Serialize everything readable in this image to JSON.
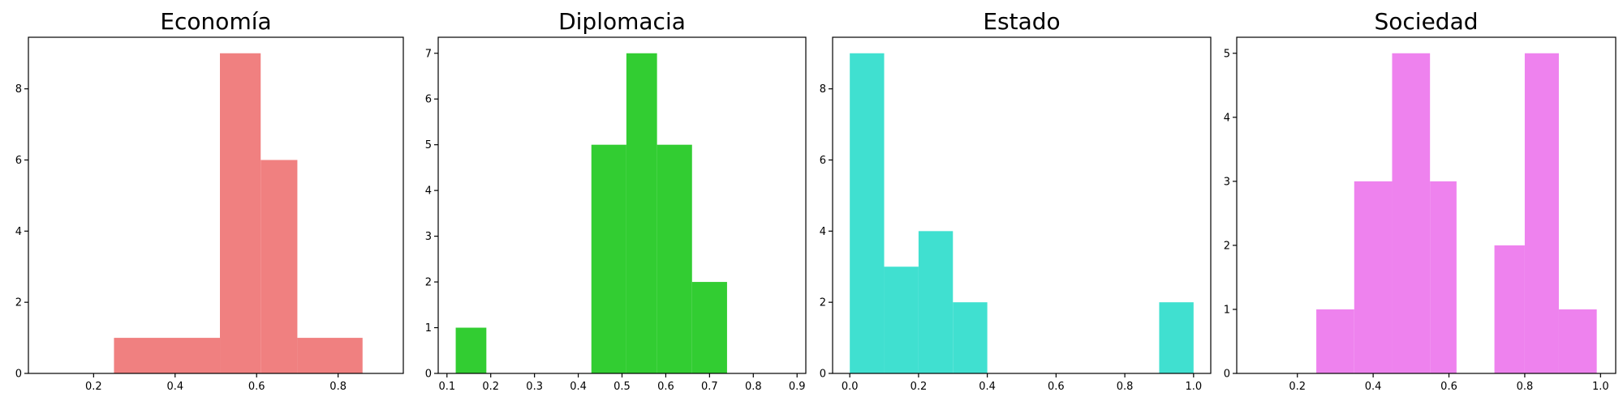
{
  "chart_data": [
    {
      "type": "bar",
      "title": "Economía",
      "color": "#F08080",
      "bins": [
        [
          0.25,
          0.51,
          1
        ],
        [
          0.51,
          0.61,
          9
        ],
        [
          0.61,
          0.7,
          6
        ],
        [
          0.7,
          0.86,
          1
        ]
      ],
      "xlim": [
        0.04,
        0.96
      ],
      "ylim": [
        0,
        9.45
      ],
      "xticks": [
        0.2,
        0.4,
        0.6,
        0.8
      ],
      "xtick_labels": [
        "0.2",
        "0.4",
        "0.6",
        "0.8"
      ],
      "yticks": [
        0,
        2,
        4,
        6,
        8
      ],
      "ytick_labels": [
        "0",
        "2",
        "4",
        "6",
        "8"
      ]
    },
    {
      "type": "bar",
      "title": "Diplomacia",
      "color": "#32CD32",
      "bins": [
        [
          0.12,
          0.19,
          1
        ],
        [
          0.43,
          0.51,
          5
        ],
        [
          0.51,
          0.58,
          7
        ],
        [
          0.58,
          0.66,
          5
        ],
        [
          0.66,
          0.74,
          2
        ]
      ],
      "xlim": [
        0.08,
        0.92
      ],
      "ylim": [
        0,
        7.35
      ],
      "xticks": [
        0.1,
        0.2,
        0.3,
        0.4,
        0.5,
        0.6,
        0.7,
        0.8,
        0.9
      ],
      "xtick_labels": [
        "0.1",
        "0.2",
        "0.3",
        "0.4",
        "0.5",
        "0.6",
        "0.7",
        "0.8",
        "0.9"
      ],
      "yticks": [
        0,
        1,
        2,
        3,
        4,
        5,
        6,
        7
      ],
      "ytick_labels": [
        "0",
        "1",
        "2",
        "3",
        "4",
        "5",
        "6",
        "7"
      ]
    },
    {
      "type": "bar",
      "title": "Estado",
      "color": "#40E0D0",
      "bins": [
        [
          0.0,
          0.1,
          9
        ],
        [
          0.1,
          0.2,
          3
        ],
        [
          0.2,
          0.3,
          4
        ],
        [
          0.3,
          0.4,
          2
        ],
        [
          0.9,
          1.0,
          2
        ]
      ],
      "xlim": [
        -0.05,
        1.05
      ],
      "ylim": [
        0,
        9.45
      ],
      "xticks": [
        0.0,
        0.2,
        0.4,
        0.6,
        0.8,
        1.0
      ],
      "xtick_labels": [
        "0.0",
        "0.2",
        "0.4",
        "0.6",
        "0.8",
        "1.0"
      ],
      "yticks": [
        0,
        2,
        4,
        6,
        8
      ],
      "ytick_labels": [
        "0",
        "2",
        "4",
        "6",
        "8"
      ]
    },
    {
      "type": "bar",
      "title": "Sociedad",
      "color": "#EE82EE",
      "bins": [
        [
          0.25,
          0.35,
          1
        ],
        [
          0.35,
          0.45,
          3
        ],
        [
          0.45,
          0.55,
          5
        ],
        [
          0.55,
          0.62,
          3
        ],
        [
          0.72,
          0.8,
          2
        ],
        [
          0.8,
          0.89,
          5
        ],
        [
          0.89,
          0.99,
          1
        ]
      ],
      "xlim": [
        0.04,
        1.04
      ],
      "ylim": [
        0,
        5.25
      ],
      "xticks": [
        0.2,
        0.4,
        0.6,
        0.8,
        1.0
      ],
      "xtick_labels": [
        "0.2",
        "0.4",
        "0.6",
        "0.8",
        "1.0"
      ],
      "yticks": [
        0,
        1,
        2,
        3,
        4,
        5
      ],
      "ytick_labels": [
        "0",
        "1",
        "2",
        "3",
        "4",
        "5"
      ]
    }
  ]
}
